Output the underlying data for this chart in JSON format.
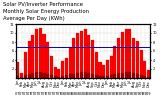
{
  "title1": "Solar PV/Inverter Performance",
  "title2": "Monthly Solar Energy Production",
  "title3": "Average Per Day (KWh)",
  "categories": [
    "Jan",
    "Feb",
    "Mar",
    "Apr",
    "May",
    "Jun",
    "Jul",
    "Aug",
    "Sep",
    "Oct",
    "Nov",
    "Dec",
    "Jan",
    "Feb",
    "Mar",
    "Apr",
    "May",
    "Jun",
    "Jul",
    "Aug",
    "Sep",
    "Oct",
    "Nov",
    "Dec",
    "Jan",
    "Feb",
    "Mar",
    "Apr",
    "May",
    "Jun",
    "Jul",
    "Aug",
    "Sep",
    "Oct",
    "Nov",
    "Dec"
  ],
  "years": [
    "'07",
    "'07",
    "'07",
    "'07",
    "'07",
    "'07",
    "'07",
    "'07",
    "'07",
    "'07",
    "'07",
    "'07",
    "'08",
    "'08",
    "'08",
    "'08",
    "'08",
    "'08",
    "'08",
    "'08",
    "'08",
    "'08",
    "'08",
    "'08",
    "'09",
    "'09",
    "'09",
    "'09",
    "'09",
    "'09",
    "'09",
    "'09",
    "'09",
    "'09",
    "'09",
    "'09"
  ],
  "values": [
    3.5,
    1.2,
    5.8,
    8.2,
    9.5,
    10.8,
    11.2,
    9.8,
    8.0,
    4.8,
    2.5,
    2.0,
    3.8,
    4.5,
    7.0,
    8.8,
    10.0,
    10.5,
    11.0,
    9.5,
    8.5,
    5.8,
    3.5,
    2.8,
    4.0,
    5.0,
    7.2,
    9.0,
    10.2,
    11.0,
    10.8,
    9.0,
    8.2,
    6.2,
    3.8,
    1.8
  ],
  "dark_values": [
    0.4,
    0.3,
    0.7,
    0.9,
    1.1,
    1.3,
    1.4,
    1.2,
    0.9,
    0.6,
    0.4,
    0.3,
    0.5,
    0.6,
    0.8,
    1.0,
    1.2,
    1.3,
    1.4,
    1.2,
    1.0,
    0.7,
    0.4,
    0.4,
    0.5,
    0.6,
    0.8,
    1.1,
    1.2,
    1.4,
    1.3,
    1.1,
    0.9,
    0.7,
    0.4,
    0.2
  ],
  "bar_color": "#ff0000",
  "dark_bar_color": "#990000",
  "line_color": "#0000cc",
  "line_value": 6.8,
  "background_color": "#ffffff",
  "grid_color": "#cccccc",
  "ylim": [
    0,
    12
  ],
  "yticks": [
    2,
    4,
    6,
    8,
    10,
    12
  ],
  "title_fontsize": 3.8,
  "tick_fontsize": 2.5,
  "bar_width": 0.82
}
